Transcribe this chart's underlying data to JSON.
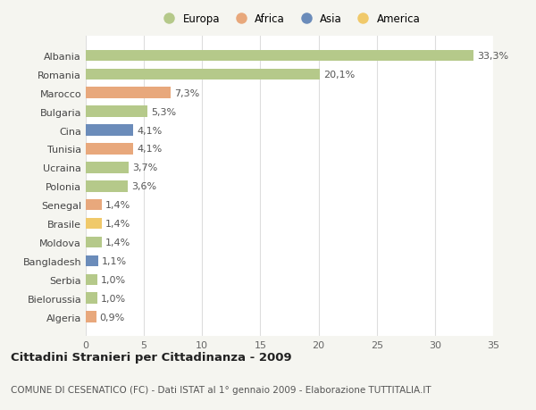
{
  "categories": [
    "Albania",
    "Romania",
    "Marocco",
    "Bulgaria",
    "Cina",
    "Tunisia",
    "Ucraina",
    "Polonia",
    "Senegal",
    "Brasile",
    "Moldova",
    "Bangladesh",
    "Serbia",
    "Bielorussia",
    "Algeria"
  ],
  "values": [
    33.3,
    20.1,
    7.3,
    5.3,
    4.1,
    4.1,
    3.7,
    3.6,
    1.4,
    1.4,
    1.4,
    1.1,
    1.0,
    1.0,
    0.9
  ],
  "labels": [
    "33,3%",
    "20,1%",
    "7,3%",
    "5,3%",
    "4,1%",
    "4,1%",
    "3,7%",
    "3,6%",
    "1,4%",
    "1,4%",
    "1,4%",
    "1,1%",
    "1,0%",
    "1,0%",
    "0,9%"
  ],
  "bar_colors": [
    "#b5c98a",
    "#b5c98a",
    "#e8a87c",
    "#b5c98a",
    "#6b8cba",
    "#e8a87c",
    "#b5c98a",
    "#b5c98a",
    "#e8a87c",
    "#f0c96a",
    "#b5c98a",
    "#6b8cba",
    "#b5c98a",
    "#b5c98a",
    "#e8a87c"
  ],
  "legend_labels": [
    "Europa",
    "Africa",
    "Asia",
    "America"
  ],
  "legend_colors": [
    "#b5c98a",
    "#e8a87c",
    "#6b8cba",
    "#f0c96a"
  ],
  "title": "Cittadini Stranieri per Cittadinanza - 2009",
  "subtitle": "COMUNE DI CESENATICO (FC) - Dati ISTAT al 1° gennaio 2009 - Elaborazione TUTTITALIA.IT",
  "xlim": [
    0,
    35
  ],
  "xticks": [
    0,
    5,
    10,
    15,
    20,
    25,
    30,
    35
  ],
  "fig_background": "#f5f5f0",
  "plot_background": "#ffffff",
  "grid_color": "#dddddd",
  "bar_label_fontsize": 8,
  "ytick_fontsize": 8,
  "xtick_fontsize": 8,
  "legend_fontsize": 8.5,
  "title_fontsize": 9.5,
  "subtitle_fontsize": 7.5
}
